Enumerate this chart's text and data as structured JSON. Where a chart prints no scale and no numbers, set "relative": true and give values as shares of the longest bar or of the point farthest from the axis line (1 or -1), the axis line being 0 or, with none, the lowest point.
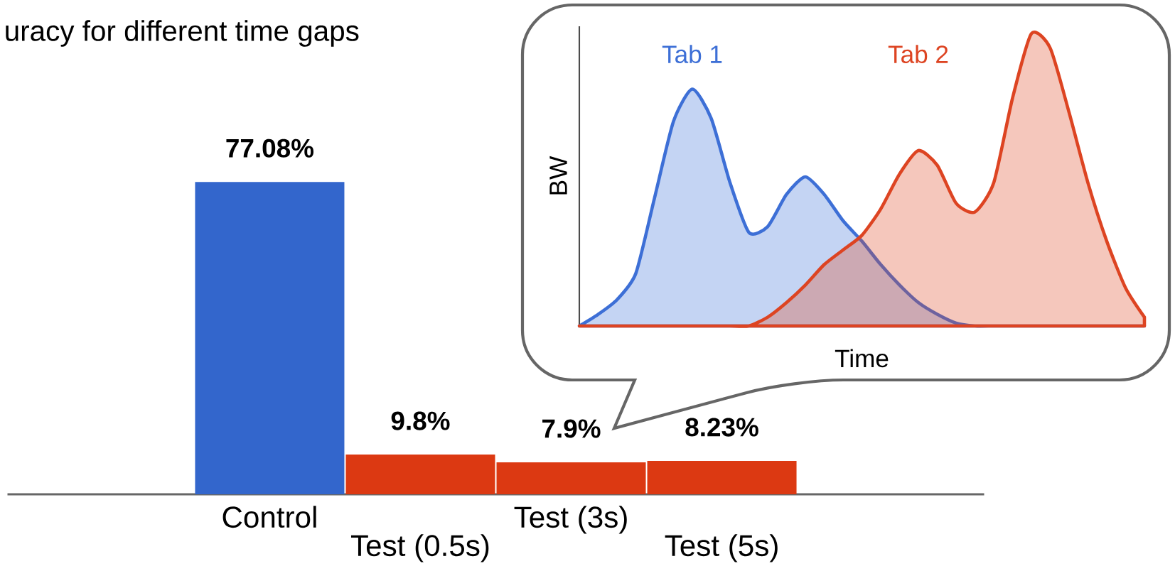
{
  "chart_data": [
    {
      "type": "bar",
      "title": "uracy for different time gaps",
      "categories": [
        "Control",
        "Test (0.5s)",
        "Test (3s)",
        "Test (5s)"
      ],
      "values": [
        77.08,
        9.8,
        7.9,
        8.23
      ],
      "colors": [
        "#3366cc",
        "#dc3912",
        "#dc3912",
        "#dc3912"
      ],
      "value_labels": [
        "77.08%",
        "9.8%",
        "7.9%",
        "8.23%"
      ]
    },
    {
      "type": "area",
      "relative": true,
      "xlabel": "Time",
      "ylabel": "BW",
      "categories": [
        null,
        null,
        null,
        null,
        null,
        null,
        null,
        null,
        null,
        null,
        null,
        null,
        null,
        null,
        null,
        null,
        null,
        null,
        null,
        null,
        null,
        null,
        null,
        null,
        null,
        null,
        null,
        null,
        null,
        null,
        null
      ],
      "series": [
        {
          "name": "Tab 1",
          "color": "#3d6fd6",
          "values": [
            0,
            0.04,
            0.09,
            0.18,
            0.44,
            0.7,
            0.81,
            0.71,
            0.49,
            0.32,
            0.34,
            0.45,
            0.51,
            0.45,
            0.36,
            0.29,
            0.21,
            0.14,
            0.08,
            0.04,
            0.01,
            0,
            0,
            0,
            0,
            0,
            0,
            0,
            0,
            0,
            0
          ]
        },
        {
          "name": "Tab 2",
          "color": "#dd4422",
          "values": [
            0,
            0,
            0,
            0,
            0,
            0,
            0,
            0,
            0,
            0,
            0.03,
            0.08,
            0.14,
            0.21,
            0.26,
            0.31,
            0.4,
            0.52,
            0.6,
            0.55,
            0.42,
            0.39,
            0.49,
            0.78,
            1.0,
            0.95,
            0.73,
            0.49,
            0.29,
            0.13,
            0.03
          ]
        }
      ]
    }
  ]
}
